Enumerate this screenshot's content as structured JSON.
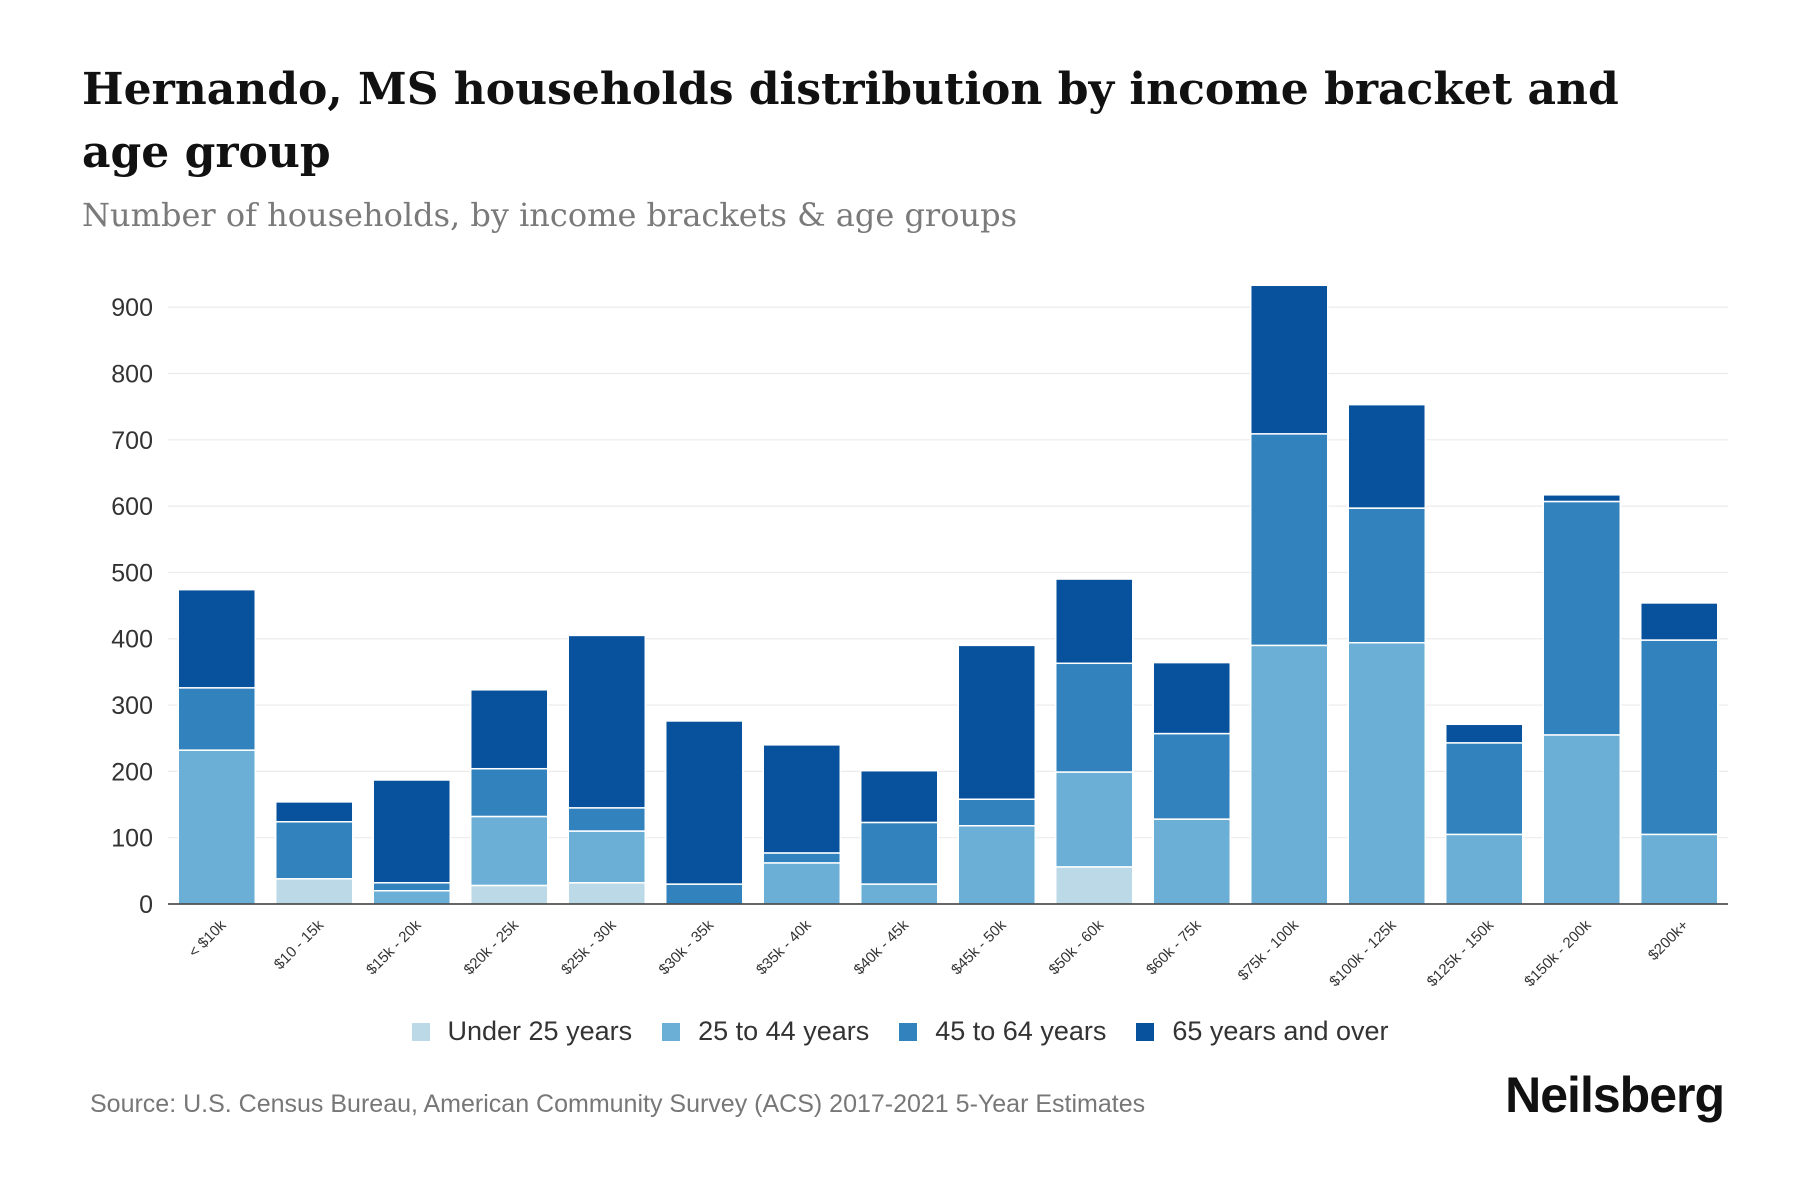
{
  "colors": {
    "under25": "#bcd9e8",
    "age25_44": "#6baed6",
    "age45_64": "#3182bd",
    "age65plus": "#08519c",
    "grid": "#ebebeb",
    "axis": "#333333",
    "tick_text": "#333333"
  },
  "chart_data": {
    "type": "bar",
    "stacked": true,
    "title": "Hernando, MS households distribution by income bracket and age group",
    "subtitle": "Number of households, by income brackets & age groups",
    "xlabel": "",
    "ylabel": "",
    "ylim": [
      0,
      950
    ],
    "yticks": [
      0,
      100,
      200,
      300,
      400,
      500,
      600,
      700,
      800,
      900
    ],
    "grid": true,
    "legend_position": "bottom",
    "categories": [
      "< $10k",
      "$10 - 15k",
      "$15k - 20k",
      "$20k - 25k",
      "$25k - 30k",
      "$30k - 35k",
      "$35k - 40k",
      "$40k - 45k",
      "$45k - 50k",
      "$50k - 60k",
      "$60k - 75k",
      "$75k - 100k",
      "$100k - 125k",
      "$125k - 150k",
      "$150k - 200k",
      "$200k+"
    ],
    "series": [
      {
        "name": "Under 25 years",
        "color_key": "under25",
        "values": [
          0,
          38,
          0,
          28,
          32,
          0,
          0,
          0,
          0,
          56,
          0,
          0,
          0,
          0,
          0,
          0
        ]
      },
      {
        "name": "25 to 44 years",
        "color_key": "age25_44",
        "values": [
          232,
          0,
          20,
          104,
          78,
          0,
          62,
          30,
          118,
          143,
          128,
          390,
          394,
          105,
          255,
          105
        ]
      },
      {
        "name": "45 to 64 years",
        "color_key": "age45_64",
        "values": [
          94,
          86,
          12,
          72,
          35,
          30,
          15,
          93,
          40,
          164,
          129,
          319,
          203,
          138,
          352,
          293
        ]
      },
      {
        "name": "65 years and over",
        "color_key": "age65plus",
        "values": [
          148,
          30,
          155,
          119,
          260,
          246,
          163,
          78,
          232,
          127,
          107,
          224,
          156,
          28,
          10,
          56
        ]
      }
    ]
  },
  "source": "Source: U.S. Census Bureau, American Community Survey (ACS) 2017-2021 5-Year Estimates",
  "brand": "Neilsberg"
}
